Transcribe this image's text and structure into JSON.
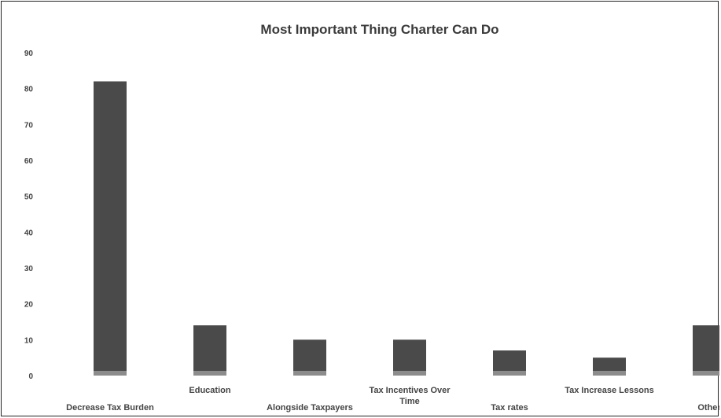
{
  "chart_data": {
    "type": "bar",
    "title": "Most Important Thing Charter Can Do",
    "xlabel": "",
    "ylabel": "",
    "categories": [
      "Decrease Tax Burden",
      "Education",
      "Alongside Taxpayers",
      "Tax Incentives Over Time",
      "Tax rates",
      "Tax Increase Lessons",
      "Other"
    ],
    "values": [
      82,
      14,
      10,
      10,
      7,
      5,
      14
    ],
    "ylim": [
      0,
      90
    ],
    "yticks": [
      "0",
      "10",
      "20",
      "30",
      "40",
      "50",
      "60",
      "70",
      "80",
      "90"
    ],
    "bar_color": "#4a4a4a",
    "base_color": "#8c8c8c",
    "grid": false,
    "legend": "none"
  }
}
